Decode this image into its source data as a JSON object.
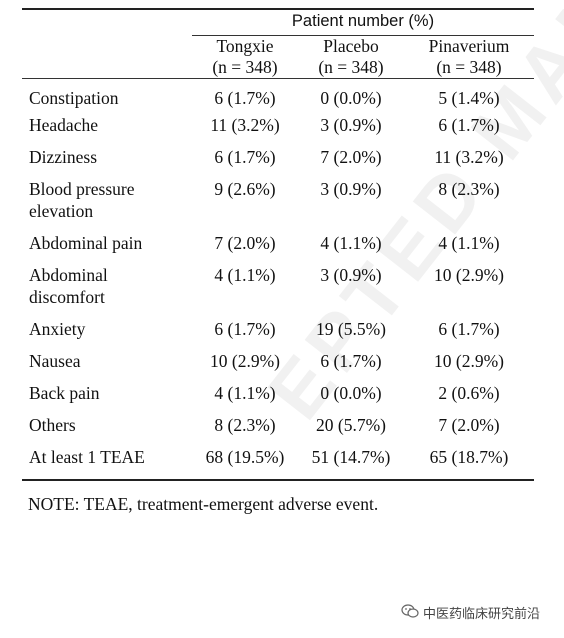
{
  "table": {
    "group_header": "Patient number (%)",
    "columns": [
      {
        "name": "Tongxie",
        "n": "(n = 348)"
      },
      {
        "name": "Placebo",
        "n": "(n = 348)"
      },
      {
        "name": "Pinaverium",
        "n": "(n = 348)"
      }
    ],
    "rows": [
      {
        "label": "Constipation",
        "values": [
          "6 (1.7%)",
          "0 (0.0%)",
          "5 (1.4%)"
        ]
      },
      {
        "label": "Headache",
        "values": [
          "11 (3.2%)",
          "3 (0.9%)",
          "6 (1.7%)"
        ]
      },
      {
        "label": "Dizziness",
        "values": [
          "6 (1.7%)",
          "7 (2.0%)",
          "11 (3.2%)"
        ]
      },
      {
        "label": "Blood pressure elevation",
        "values": [
          "9 (2.6%)",
          "3 (0.9%)",
          "8 (2.3%)"
        ]
      },
      {
        "label": "Abdominal pain",
        "values": [
          "7 (2.0%)",
          "4 (1.1%)",
          "4 (1.1%)"
        ]
      },
      {
        "label": "Abdominal discomfort",
        "values": [
          "4 (1.1%)",
          "3 (0.9%)",
          "10 (2.9%)"
        ]
      },
      {
        "label": "Anxiety",
        "values": [
          "6 (1.7%)",
          "19 (5.5%)",
          "6 (1.7%)"
        ]
      },
      {
        "label": "Nausea",
        "values": [
          "10 (2.9%)",
          "6 (1.7%)",
          "10 (2.9%)"
        ]
      },
      {
        "label": "Back pain",
        "values": [
          "4 (1.1%)",
          "0 (0.0%)",
          "2 (0.6%)"
        ]
      },
      {
        "label": "Others",
        "values": [
          "8 (2.3%)",
          "20 (5.7%)",
          "7 (2.0%)"
        ]
      },
      {
        "label": "At least 1 TEAE",
        "values": [
          "68 (19.5%)",
          "51 (14.7%)",
          "65 (18.7%)"
        ]
      }
    ]
  },
  "note": "NOTE: TEAE, treatment-emergent adverse event.",
  "watermark": "EPTED MANU",
  "brand": {
    "icon": "wechat-icon",
    "text": "中医药临床研究前沿"
  }
}
